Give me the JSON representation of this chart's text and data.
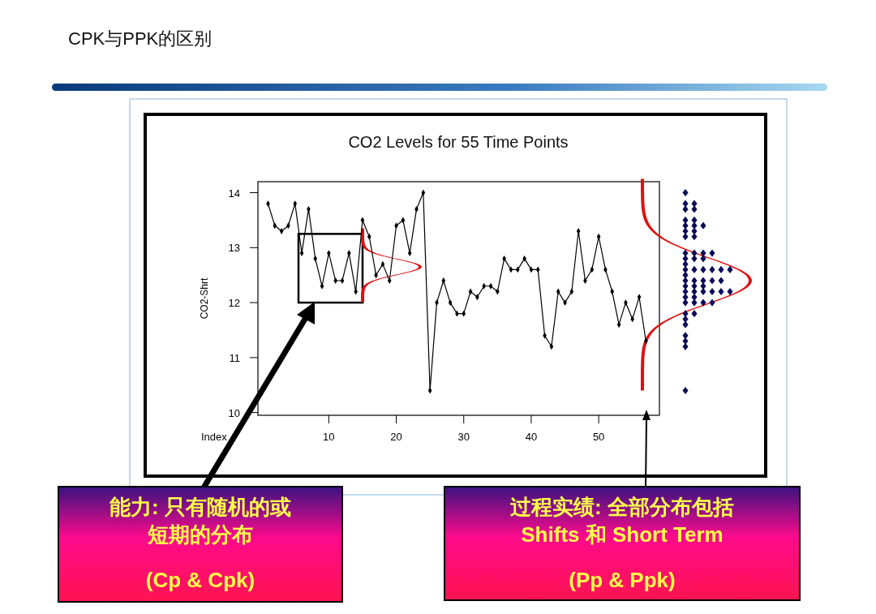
{
  "chart_data": {
    "type": "line",
    "title": "CPK与PPK的区别",
    "subtitle": "CO2 Levels for 55 Time Points",
    "xlabel": "Index",
    "ylabel": "CO2-Shrt",
    "x": [
      1,
      2,
      3,
      4,
      5,
      6,
      7,
      8,
      9,
      10,
      11,
      12,
      13,
      14,
      15,
      16,
      17,
      18,
      19,
      20,
      21,
      22,
      23,
      24,
      25,
      26,
      27,
      28,
      29,
      30,
      31,
      32,
      33,
      34,
      35,
      36,
      37,
      38,
      39,
      40,
      41,
      42,
      43,
      44,
      45,
      46,
      47,
      48,
      49,
      50,
      51,
      52,
      53,
      54,
      55,
      56,
      57
    ],
    "series": [
      {
        "color": "#000000",
        "values": [
          13.8,
          13.4,
          13.3,
          13.4,
          13.8,
          12.9,
          13.7,
          12.8,
          12.3,
          12.9,
          12.4,
          12.4,
          12.9,
          12.2,
          13.5,
          13.2,
          12.5,
          12.7,
          12.4,
          13.4,
          13.5,
          12.9,
          13.7,
          14.0,
          10.4,
          12.0,
          12.4,
          12.0,
          11.8,
          11.8,
          12.2,
          12.1,
          12.3,
          12.3,
          12.2,
          12.8,
          12.6,
          12.6,
          12.8,
          12.6,
          12.6,
          11.4,
          11.2,
          12.2,
          12.0,
          12.2,
          13.3,
          12.4,
          12.6,
          13.2,
          12.6,
          12.2,
          11.6,
          12.0,
          11.7,
          12.1,
          11.3
        ]
      }
    ],
    "xlim": [
      -0.5,
      59
    ],
    "xticks": [
      10,
      20,
      30,
      40,
      50
    ],
    "ylim": [
      9.95,
      14.2
    ],
    "yticks": [
      10,
      11,
      12,
      13,
      14
    ],
    "marker": "diamond",
    "line_style": "solid",
    "grid": false,
    "annotations": [
      "能力: 只有随机的或短期的分布",
      "(Cp & Cpk)",
      "过程实绩: 全部分布包括 Shifts 和 Short Term",
      "(Pp & Ppk)"
    ]
  }
}
